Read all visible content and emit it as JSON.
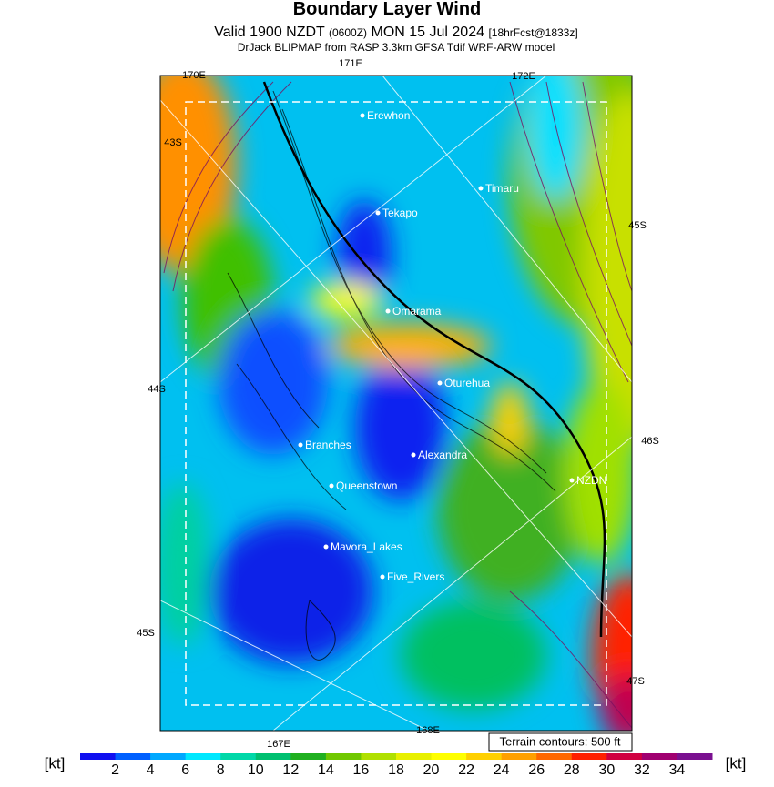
{
  "header": {
    "title": "Boundary Layer Wind",
    "subtitle": {
      "valid": "Valid 1900 NZDT",
      "utc": "(0600Z)",
      "date": "MON 15 Jul 2024",
      "forecast": "[18hrFcst@1833z]"
    },
    "model": "DrJack BLIPMAP from RASP 3.3km GFSA Tdif WRF-ARW model"
  },
  "grid_labels": [
    "170E",
    "171E",
    "172E",
    "43S",
    "45S",
    "44S",
    "46S",
    "45S",
    "47S",
    "167E",
    "168E"
  ],
  "places": [
    "Erewhon",
    "Timaru",
    "Tekapo",
    "Omarama",
    "Oturehua",
    "Branches",
    "Alexandra",
    "NZDN",
    "Queenstown",
    "Mavora_Lakes",
    "Five_Rivers"
  ],
  "terrain_note": "Terrain contours: 500 ft",
  "legend": {
    "unit": "[kt]",
    "ticks": [
      2,
      4,
      6,
      8,
      10,
      12,
      14,
      16,
      18,
      20,
      22,
      24,
      26,
      28,
      30,
      32,
      34
    ],
    "colors": [
      "#1010f0",
      "#0060ff",
      "#00a8ff",
      "#00e8ff",
      "#00d8a8",
      "#00c070",
      "#20b020",
      "#70c800",
      "#b0e000",
      "#e8f000",
      "#ffff00",
      "#ffd000",
      "#ffa000",
      "#ff6800",
      "#ff2000",
      "#d00040",
      "#a00070",
      "#7a1090"
    ]
  }
}
